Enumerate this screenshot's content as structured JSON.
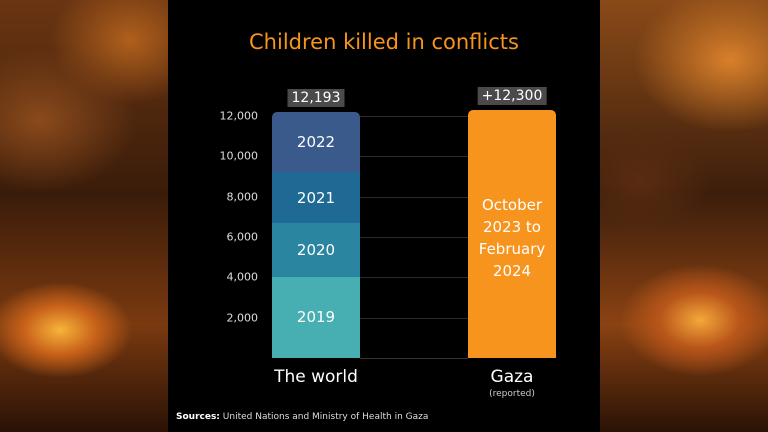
{
  "chart_data": {
    "type": "bar",
    "stacked": true,
    "title": "Children killed in conflicts",
    "categories": [
      "The world",
      "Gaza"
    ],
    "category_sublabels": [
      "",
      "(reported)"
    ],
    "yticks": [
      "2,000",
      "4,000",
      "6,000",
      "8,000",
      "10,000",
      "12,000"
    ],
    "ytick_values": [
      2000,
      4000,
      6000,
      8000,
      10000,
      12000
    ],
    "ylim": [
      0,
      12000
    ],
    "grid": true,
    "world_segments": [
      {
        "label": "2019",
        "value": 4019,
        "color": "#47aeb2"
      },
      {
        "label": "2020",
        "value": 2674,
        "color": "#2a86a0"
      },
      {
        "label": "2021",
        "value": 2515,
        "color": "#1f6a94"
      },
      {
        "label": "2022",
        "value": 2985,
        "color": "#3a5a8c"
      }
    ],
    "world_total_label": "12,193",
    "world_total": 12193,
    "gaza": {
      "value": 12300,
      "label": "+12,300",
      "text": [
        "October",
        "2023 to",
        "February",
        "2024"
      ],
      "color": "#f7941d"
    },
    "source_prefix": "Sources:",
    "source": "United Nations and  Ministry of Health in Gaza"
  }
}
